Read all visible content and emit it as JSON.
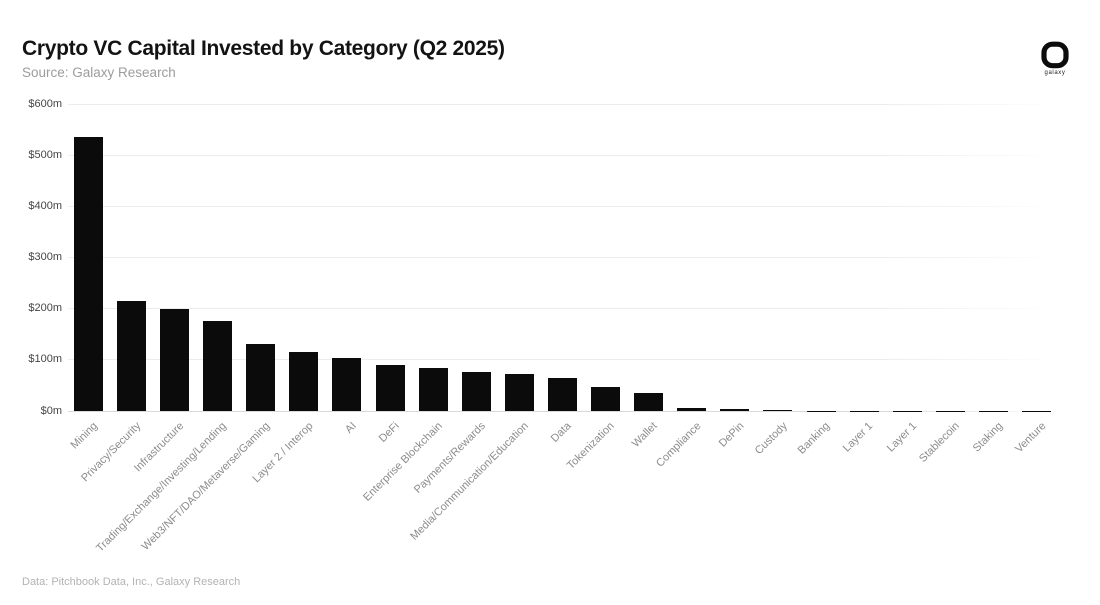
{
  "header": {
    "title": "Crypto VC Capital Invested by Category (Q2 2025)",
    "subtitle": "Source: Galaxy Research",
    "logo_text": "galaxy"
  },
  "footer": {
    "credit": "Data: Pitchbook Data, Inc., Galaxy Research"
  },
  "colors": {
    "bar": "#0b0b0b",
    "gridline": "#ededed",
    "baseline": "#d9d9d9",
    "y_tick_label": "#454545",
    "x_tick_label": "#8c8c8c",
    "title": "#131313",
    "subtitle": "#9c9c9c",
    "footer": "#b3b3b3"
  },
  "chart_data": {
    "type": "bar",
    "title": "Crypto VC Capital Invested by Category (Q2 2025)",
    "subtitle": "Source: Galaxy Research",
    "xlabel": "",
    "ylabel": "",
    "unit": "$m (millions USD)",
    "ylim": [
      0,
      600
    ],
    "ytick_step": 100,
    "ytick_labels": [
      "$0m",
      "$100m",
      "$200m",
      "$300m",
      "$400m",
      "$500m",
      "$600m"
    ],
    "grid": "horizontal",
    "legend": "none",
    "categories": [
      "Mining",
      "Privacy/Security",
      "Infrastructure",
      "Trading/Exchange/Investing/Lending",
      "Web3/NFT/DAO/Metaverse/Gaming",
      "Layer 2 / Interop",
      "AI",
      "DeFi",
      "Enterprise Blockchain",
      "Payments/Rewards",
      "Media/Communication/Education",
      "Data",
      "Tokenization",
      "Wallet",
      "Compliance",
      "DePin",
      "Custody",
      "Banking",
      "Layer 1",
      "Layer 1",
      "Stablecoin",
      "Staking",
      "Venture"
    ],
    "values": [
      535,
      215,
      200,
      176,
      130,
      115,
      104,
      90,
      84,
      76,
      72,
      65,
      46,
      35,
      6,
      3,
      1.5,
      0.5,
      0.4,
      0.4,
      0.3,
      0.2,
      0.2
    ]
  }
}
